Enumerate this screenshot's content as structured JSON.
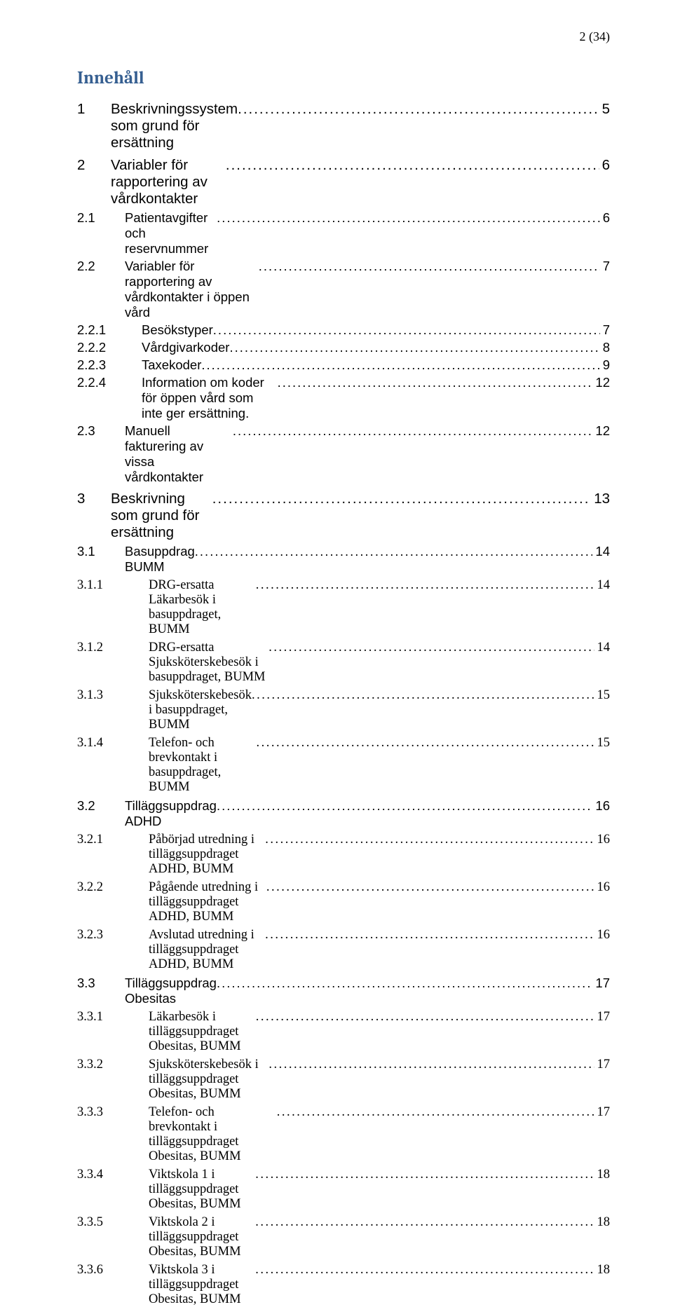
{
  "page_number_label": "2 (34)",
  "toc_title": "Innehåll",
  "colors": {
    "heading": "#365f91",
    "text": "#000000",
    "bg": "#ffffff"
  },
  "entries": [
    {
      "level": "lvl1",
      "num": "1",
      "label": "Beskrivningssystem som grund för ersättning",
      "page": "5"
    },
    {
      "level": "lvl1",
      "num": "2",
      "label": "Variabler för rapportering av vårdkontakter",
      "page": "6"
    },
    {
      "level": "lvl2",
      "num": "2.1",
      "label": "Patientavgifter och reservnummer",
      "page": "6"
    },
    {
      "level": "lvl2",
      "num": "2.2",
      "label": "Variabler för rapportering av vårdkontakter i öppen vård",
      "page": "7"
    },
    {
      "level": "lvl3a",
      "num": "2.2.1",
      "label": "Besökstyper",
      "page": "7"
    },
    {
      "level": "lvl3a",
      "num": "2.2.2",
      "label": "Vårdgivarkoder",
      "page": "8"
    },
    {
      "level": "lvl3a",
      "num": "2.2.3",
      "label": "Taxekoder",
      "page": "9"
    },
    {
      "level": "lvl3a",
      "num": "2.2.4",
      "label": "Information om koder för öppen vård  som inte ger ersättning.",
      "page": "12"
    },
    {
      "level": "lvl2",
      "num": "2.3",
      "label": "Manuell fakturering av vissa vårdkontakter",
      "page": "12"
    },
    {
      "level": "lvl1",
      "num": "3",
      "label": "Beskrivning som grund för ersättning",
      "page": "13"
    },
    {
      "level": "lvl2",
      "num": "3.1",
      "label": "Basuppdrag BUMM",
      "page": "14"
    },
    {
      "level": "lvl3b",
      "num": "3.1.1",
      "label": "DRG-ersatta Läkarbesök i basuppdraget, BUMM",
      "page": "14"
    },
    {
      "level": "lvl3b",
      "num": "3.1.2",
      "label": "DRG-ersatta Sjuksköterskebesök i basuppdraget, BUMM",
      "page": "14"
    },
    {
      "level": "lvl3b",
      "num": "3.1.3",
      "label": "Sjuksköterskebesök i basuppdraget, BUMM",
      "page": "15"
    },
    {
      "level": "lvl3b",
      "num": "3.1.4",
      "label": "Telefon- och brevkontakt i basuppdraget, BUMM",
      "page": "15"
    },
    {
      "level": "lvl2",
      "num": "3.2",
      "label": "Tilläggsuppdrag ADHD",
      "page": "16"
    },
    {
      "level": "lvl3b",
      "num": "3.2.1",
      "label": "Påbörjad utredning i tilläggsuppdraget ADHD, BUMM",
      "page": "16"
    },
    {
      "level": "lvl3b",
      "num": "3.2.2",
      "label": "Pågående utredning i tilläggsuppdraget ADHD, BUMM",
      "page": "16"
    },
    {
      "level": "lvl3b",
      "num": "3.2.3",
      "label": "Avslutad utredning i tilläggsuppdraget ADHD, BUMM",
      "page": "16"
    },
    {
      "level": "lvl2",
      "num": "3.3",
      "label": "Tilläggsuppdrag Obesitas",
      "page": "17"
    },
    {
      "level": "lvl3b",
      "num": "3.3.1",
      "label": "Läkarbesök i tilläggsuppdraget Obesitas, BUMM",
      "page": "17"
    },
    {
      "level": "lvl3b",
      "num": "3.3.2",
      "label": "Sjuksköterskebesök i tilläggsuppdraget Obesitas, BUMM",
      "page": "17"
    },
    {
      "level": "lvl3b",
      "num": "3.3.3",
      "label": "Telefon- och brevkontakt i tilläggsuppdraget Obesitas, BUMM",
      "page": "17"
    },
    {
      "level": "lvl3b",
      "num": "3.3.4",
      "label": "Viktskola 1 i tilläggsuppdraget Obesitas, BUMM",
      "page": "18"
    },
    {
      "level": "lvl3b",
      "num": "3.3.5",
      "label": "Viktskola 2 i tilläggsuppdraget Obesitas, BUMM",
      "page": "18"
    },
    {
      "level": "lvl3b",
      "num": "3.3.6",
      "label": "Viktskola 3 i tilläggsuppdraget Obesitas, BUMM",
      "page": "18"
    }
  ]
}
